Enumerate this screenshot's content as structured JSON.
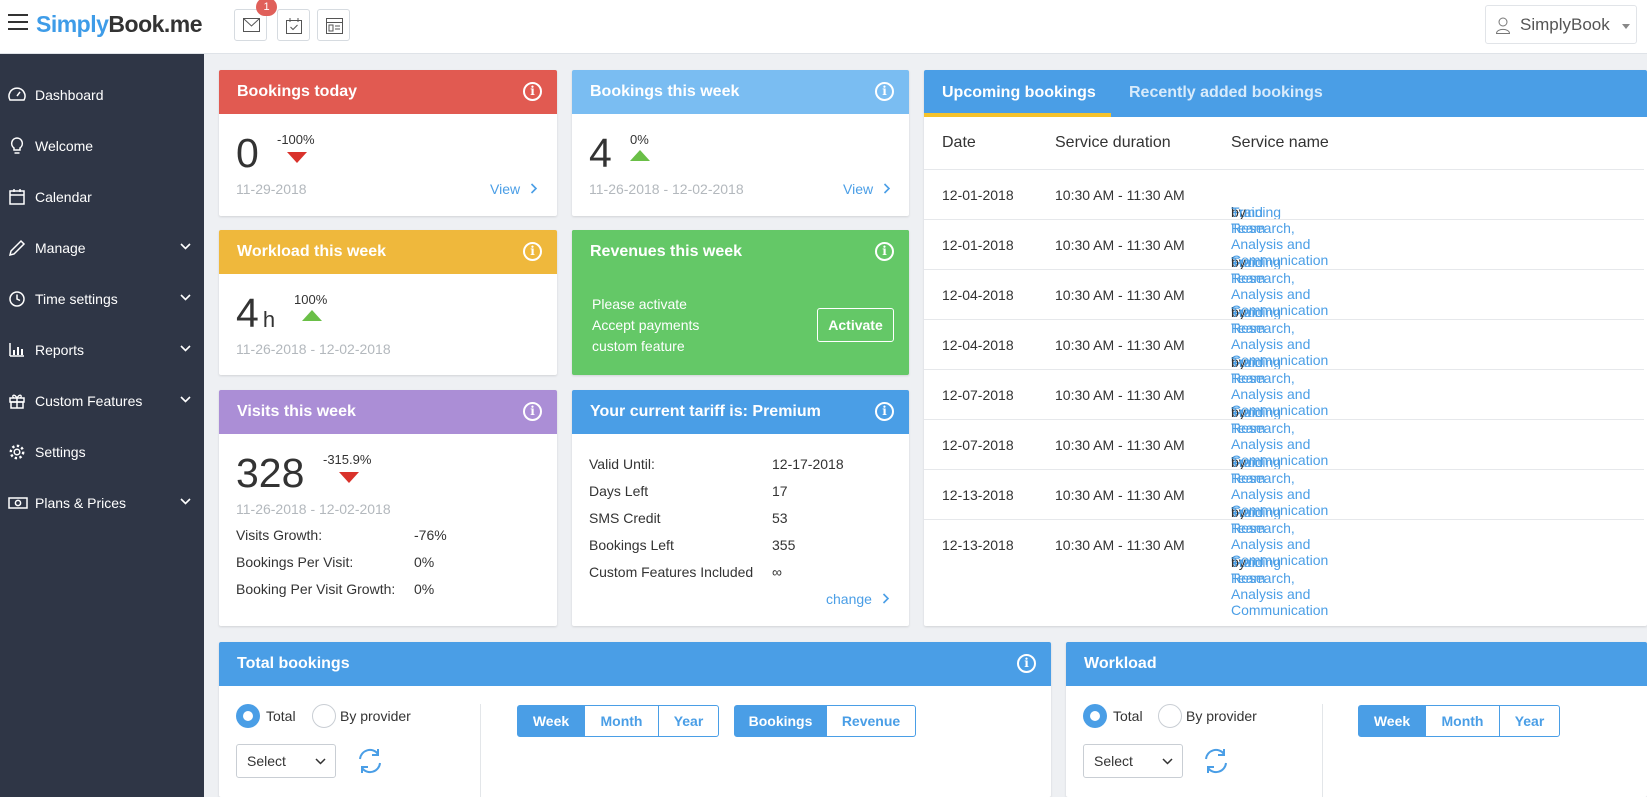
{
  "topbar": {
    "logo_a": "Simply",
    "logo_b": "Book",
    "logo_c": ".me",
    "notification_count": "1",
    "user_name": "SimplyBook"
  },
  "sidebar": {
    "items": [
      {
        "label": "Dashboard",
        "icon": "dashboard-icon"
      },
      {
        "label": "Welcome",
        "icon": "lightbulb-icon"
      },
      {
        "label": "Calendar",
        "icon": "calendar-icon"
      },
      {
        "label": "Manage",
        "icon": "pencil-icon"
      },
      {
        "label": "Time settings",
        "icon": "clock-icon"
      },
      {
        "label": "Reports",
        "icon": "bar-chart-icon"
      },
      {
        "label": "Custom Features",
        "icon": "gift-icon"
      },
      {
        "label": "Settings",
        "icon": "gear-icon"
      },
      {
        "label": "Plans & Prices",
        "icon": "money-icon"
      }
    ]
  },
  "bookings_today": {
    "title": "Bookings today",
    "value": "0",
    "change": "-100%",
    "date": "11-29-2018",
    "link": "View"
  },
  "bookings_week": {
    "title": "Bookings this week",
    "value": "4",
    "change": "0%",
    "date": "11-26-2018 - 12-02-2018",
    "link": "View"
  },
  "workload_week": {
    "title": "Workload this week",
    "value": "4",
    "unit": "h",
    "change": "100%",
    "date": "11-26-2018 - 12-02-2018"
  },
  "revenues_week": {
    "title": "Revenues this week",
    "line1": "Please activate",
    "line2": "Accept payments",
    "line3": "custom feature",
    "button": "Activate"
  },
  "visits_week": {
    "title": "Visits this week",
    "value": "328",
    "change": "-315.9%",
    "date": "11-26-2018 - 12-02-2018",
    "stats": [
      {
        "label": "Visits Growth:",
        "value": "-76%"
      },
      {
        "label": "Bookings Per Visit:",
        "value": "0%"
      },
      {
        "label": "Booking Per Visit Growth:",
        "value": "0%"
      }
    ]
  },
  "tariff": {
    "title": "Your current tariff is: Premium",
    "rows": [
      {
        "label": "Valid Until:",
        "value": "12-17-2018"
      },
      {
        "label": "Days Left",
        "value": "17"
      },
      {
        "label": "SMS Credit",
        "value": "53"
      },
      {
        "label": "Bookings Left",
        "value": "355"
      },
      {
        "label": "Custom Features Included",
        "value": "∞"
      }
    ],
    "link": "change"
  },
  "upcoming": {
    "tab_active": "Upcoming bookings",
    "tab_inactive": "Recently added bookings",
    "columns": [
      "Date",
      "Service duration",
      "Service name"
    ],
    "by_word": "by",
    "rows": [
      {
        "date": "12-01-2018",
        "duration": "10:30 AM - 11:30 AM",
        "service": "Fund Research, Analysis and Communication",
        "provider": "Training Team"
      },
      {
        "date": "12-01-2018",
        "duration": "10:30 AM - 11:30 AM",
        "service": "Fund Research, Analysis and Communication",
        "provider": "Training Team"
      },
      {
        "date": "12-04-2018",
        "duration": "10:30 AM - 11:30 AM",
        "service": "Fund Research, Analysis and Communication",
        "provider": "Training Team"
      },
      {
        "date": "12-04-2018",
        "duration": "10:30 AM - 11:30 AM",
        "service": "Fund Research, Analysis and Communication",
        "provider": "Training Team"
      },
      {
        "date": "12-07-2018",
        "duration": "10:30 AM - 11:30 AM",
        "service": "Fund Research, Analysis and Communication",
        "provider": "Training Team"
      },
      {
        "date": "12-07-2018",
        "duration": "10:30 AM - 11:30 AM",
        "service": "Fund Research, Analysis and Communication",
        "provider": "Training Team"
      },
      {
        "date": "12-13-2018",
        "duration": "10:30 AM - 11:30 AM",
        "service": "Fund Research, Analysis and Communication",
        "provider": "Training Team"
      },
      {
        "date": "12-13-2018",
        "duration": "10:30 AM - 11:30 AM",
        "service": "Fund Research, Analysis and Communication",
        "provider": "Training Team"
      }
    ]
  },
  "total_bookings": {
    "title": "Total bookings",
    "radio_total": "Total",
    "radio_provider": "By provider",
    "select_value": "Select",
    "periods": [
      "Week",
      "Month",
      "Year"
    ],
    "metrics": [
      "Bookings",
      "Revenue"
    ]
  },
  "workload": {
    "title": "Workload",
    "radio_total": "Total",
    "radio_provider": "By provider",
    "select_value": "Select",
    "periods": [
      "Week",
      "Month",
      "Year"
    ]
  },
  "colors": {
    "accent": "#4a9ee6",
    "red": "#e15a51",
    "yellow": "#efb83c",
    "green": "#64c867",
    "purple": "#ab8ed6",
    "sidebar": "#2f3646"
  }
}
